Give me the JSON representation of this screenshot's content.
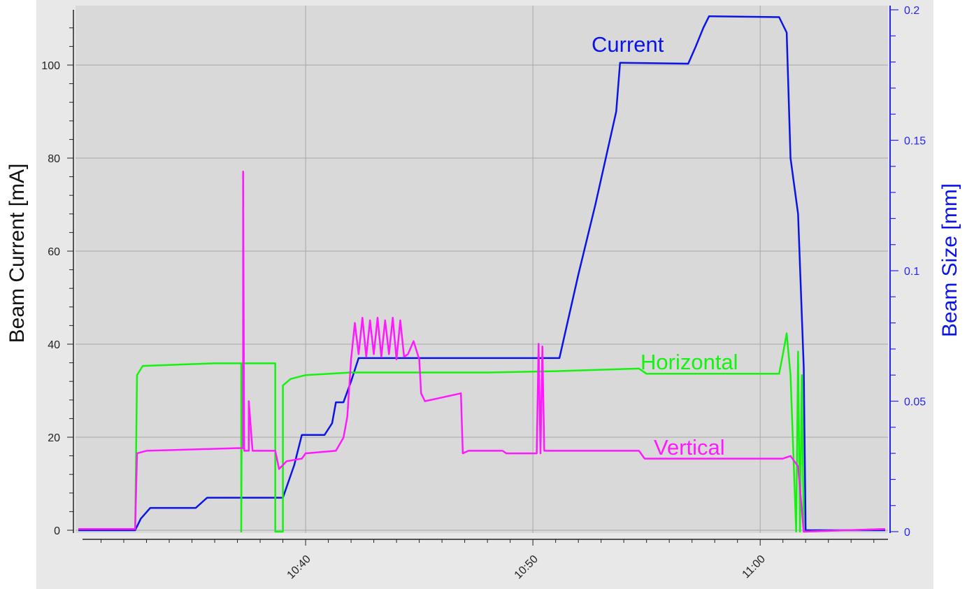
{
  "chart_data": {
    "type": "line",
    "ylabel": "Beam Current [mA]",
    "y2label": "Beam Size [mm]",
    "xlabel": "",
    "ylim": [
      0,
      110
    ],
    "y2lim": [
      0,
      0.2
    ],
    "xlim": [
      "10:30:00",
      "11:05:30"
    ],
    "yticks": [
      0,
      20,
      40,
      60,
      80,
      100
    ],
    "y2ticks": [
      0,
      0.05,
      0.1,
      0.15,
      0.2
    ],
    "xticks": [
      "10:40",
      "10:50",
      "11:00"
    ],
    "grid": true,
    "colors": {
      "current": "#0a14e6",
      "horizontal": "#15f20f",
      "vertical": "#ff19ff",
      "right_axis": "#2626ee",
      "plot_bg": "#d9d9d9",
      "frame_bg": "#e8e8e8"
    },
    "series": [
      {
        "name": "Current",
        "axis": "left",
        "points": [
          [
            "10:30:00",
            0
          ],
          [
            "10:32:30",
            0
          ],
          [
            "10:32:45",
            2.5
          ],
          [
            "10:33:10",
            4.8
          ],
          [
            "10:34:40",
            4.8
          ],
          [
            "10:35:10",
            4.8
          ],
          [
            "10:35:40",
            7
          ],
          [
            "10:39:00",
            7
          ],
          [
            "10:39:30",
            14
          ],
          [
            "10:39:50",
            20.5
          ],
          [
            "10:40:50",
            20.5
          ],
          [
            "10:41:10",
            23
          ],
          [
            "10:41:20",
            27.5
          ],
          [
            "10:41:40",
            27.5
          ],
          [
            "10:42:00",
            32
          ],
          [
            "10:42:20",
            37
          ],
          [
            "10:51:00",
            37
          ],
          [
            "10:51:10",
            37
          ],
          [
            "10:52:00",
            55
          ],
          [
            "10:52:45",
            70
          ],
          [
            "10:53:40",
            90
          ],
          [
            "10:53:50",
            100.5
          ],
          [
            "10:56:50",
            100.3
          ],
          [
            "10:57:10",
            104
          ],
          [
            "10:57:30",
            108
          ],
          [
            "10:57:45",
            110.5
          ],
          [
            "11:00:50",
            110.3
          ],
          [
            "11:01:10",
            107
          ],
          [
            "11:01:20",
            80
          ],
          [
            "11:01:40",
            68
          ],
          [
            "11:01:55",
            35
          ],
          [
            "11:02:00",
            0
          ],
          [
            "11:05:30",
            0
          ]
        ]
      },
      {
        "name": "Horizontal",
        "axis": "right",
        "points": [
          [
            "10:30:00",
            0.001
          ],
          [
            "10:32:30",
            0.001
          ],
          [
            "10:32:35",
            0.06
          ],
          [
            "10:32:50",
            0.0635
          ],
          [
            "10:36:00",
            0.0645
          ],
          [
            "10:37:10",
            0.0645
          ],
          [
            "10:37:10",
            0.0
          ],
          [
            "10:37:12",
            0.0645
          ],
          [
            "10:38:40",
            0.0645
          ],
          [
            "10:38:40",
            0.0
          ],
          [
            "10:39:00",
            0.0
          ],
          [
            "10:39:00",
            0.056
          ],
          [
            "10:39:20",
            0.0585
          ],
          [
            "10:40:00",
            0.06
          ],
          [
            "10:42:00",
            0.061
          ],
          [
            "10:48:00",
            0.061
          ],
          [
            "10:51:00",
            0.0615
          ],
          [
            "10:54:40",
            0.0625
          ],
          [
            "10:55:00",
            0.0605
          ],
          [
            "11:00:50",
            0.0605
          ],
          [
            "11:01:00",
            0.068
          ],
          [
            "11:01:10",
            0.076
          ],
          [
            "11:01:20",
            0.06
          ],
          [
            "11:01:35",
            0.0
          ],
          [
            "11:01:40",
            0.069
          ],
          [
            "11:01:45",
            0.0
          ],
          [
            "11:01:50",
            0.06
          ],
          [
            "11:01:55",
            0.0
          ],
          [
            "11:05:30",
            0.001
          ]
        ]
      },
      {
        "name": "Vertical",
        "axis": "right",
        "points": [
          [
            "10:30:00",
            0.001
          ],
          [
            "10:32:30",
            0.001
          ],
          [
            "10:32:35",
            0.03
          ],
          [
            "10:33:00",
            0.031
          ],
          [
            "10:37:00",
            0.032
          ],
          [
            "10:37:15",
            0.032
          ],
          [
            "10:37:15",
            0.138
          ],
          [
            "10:37:18",
            0.031
          ],
          [
            "10:37:30",
            0.031
          ],
          [
            "10:37:30",
            0.05
          ],
          [
            "10:37:40",
            0.031
          ],
          [
            "10:38:40",
            0.031
          ],
          [
            "10:38:50",
            0.024
          ],
          [
            "10:39:10",
            0.027
          ],
          [
            "10:39:50",
            0.028
          ],
          [
            "10:40:00",
            0.03
          ],
          [
            "10:41:20",
            0.031
          ],
          [
            "10:41:40",
            0.036
          ],
          [
            "10:41:50",
            0.044
          ],
          [
            "10:42:00",
            0.066
          ],
          [
            "10:42:10",
            0.08
          ],
          [
            "10:42:20",
            0.068
          ],
          [
            "10:42:30",
            0.082
          ],
          [
            "10:42:40",
            0.067
          ],
          [
            "10:42:50",
            0.081
          ],
          [
            "10:43:00",
            0.068
          ],
          [
            "10:43:10",
            0.082
          ],
          [
            "10:43:20",
            0.067
          ],
          [
            "10:43:30",
            0.081
          ],
          [
            "10:43:40",
            0.068
          ],
          [
            "10:43:50",
            0.082
          ],
          [
            "10:44:00",
            0.066
          ],
          [
            "10:44:10",
            0.081
          ],
          [
            "10:44:20",
            0.067
          ],
          [
            "10:44:30",
            0.068
          ],
          [
            "10:44:45",
            0.073
          ],
          [
            "10:45:00",
            0.066
          ],
          [
            "10:45:05",
            0.053
          ],
          [
            "10:45:15",
            0.05
          ],
          [
            "10:46:50",
            0.053
          ],
          [
            "10:46:55",
            0.03
          ],
          [
            "10:47:10",
            0.031
          ],
          [
            "10:48:40",
            0.031
          ],
          [
            "10:48:50",
            0.03
          ],
          [
            "10:50:10",
            0.03
          ],
          [
            "10:50:15",
            0.072
          ],
          [
            "10:50:20",
            0.03
          ],
          [
            "10:50:25",
            0.071
          ],
          [
            "10:50:30",
            0.031
          ],
          [
            "10:54:40",
            0.031
          ],
          [
            "10:54:55",
            0.028
          ],
          [
            "11:01:00",
            0.028
          ],
          [
            "11:01:20",
            0.029
          ],
          [
            "11:01:40",
            0.025
          ],
          [
            "11:01:55",
            0.0
          ],
          [
            "11:05:30",
            0.001
          ]
        ]
      }
    ],
    "annotations": [
      {
        "text": "Current",
        "series": "Current"
      },
      {
        "text": "Horizontal",
        "series": "Horizontal"
      },
      {
        "text": "Vertical",
        "series": "Vertical"
      }
    ]
  }
}
